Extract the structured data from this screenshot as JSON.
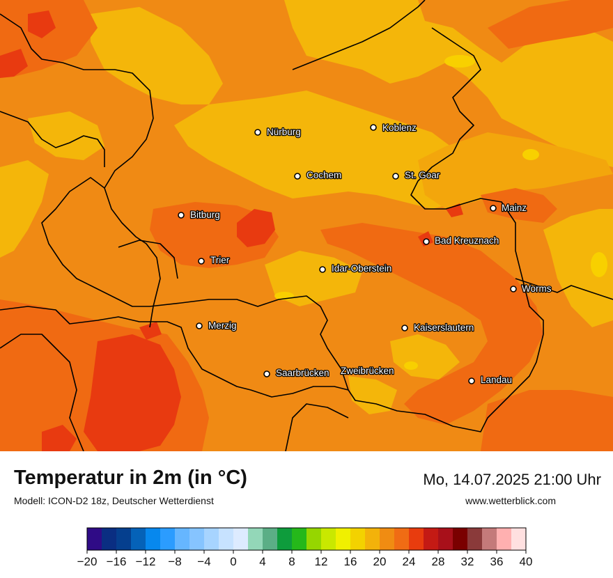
{
  "title": "Temperatur in 2m (in °C)",
  "subtitle": "Modell: ICON-D2 18z, Deutscher Wetterdienst",
  "datetime": "Mo, 14.07.2025 21:00 Uhr",
  "website": "www.wetterblick.com",
  "colors": {
    "base": "#F08A14",
    "warm_orange": "#F06A12",
    "hot_red": "#E83A10",
    "cool_yellow": "#F4B60A",
    "pale_yellow": "#F8D000",
    "border": "#000000"
  },
  "cities": [
    {
      "name": "Nürburg"
    },
    {
      "name": "Koblenz"
    },
    {
      "name": "Cochem"
    },
    {
      "name": "St. Goar"
    },
    {
      "name": "Mainz"
    },
    {
      "name": "Bitburg"
    },
    {
      "name": "Bad Kreuznach"
    },
    {
      "name": "Trier"
    },
    {
      "name": "Idar-Oberstein"
    },
    {
      "name": "Worms"
    },
    {
      "name": "Merzig"
    },
    {
      "name": "Kaiserslautern"
    },
    {
      "name": "Saarbrücken"
    },
    {
      "name": "Zweibrücken"
    },
    {
      "name": "Landau"
    }
  ],
  "legend": {
    "tick_labels": [
      "−20",
      "−16",
      "−12",
      "−8",
      "−4",
      "0",
      "4",
      "8",
      "12",
      "16",
      "20",
      "24",
      "28",
      "32",
      "36",
      "40"
    ],
    "colors": [
      "#2F0B86",
      "#0A2E82",
      "#053F8E",
      "#0562B8",
      "#0788EE",
      "#2B9CFF",
      "#66B6FF",
      "#86C4FF",
      "#A7D4FF",
      "#C7E2FF",
      "#DDEBFF",
      "#93D7B8",
      "#5BAE86",
      "#0E9C3C",
      "#25B81A",
      "#96D600",
      "#C9E800",
      "#F0F000",
      "#F3D200",
      "#F3B20A",
      "#F08C12",
      "#F06C14",
      "#E83C0E",
      "#C41A14",
      "#A8101A",
      "#7A0000",
      "#8A3A3A",
      "#C47A7A",
      "#FFB0B0",
      "#FFE0E0"
    ]
  }
}
